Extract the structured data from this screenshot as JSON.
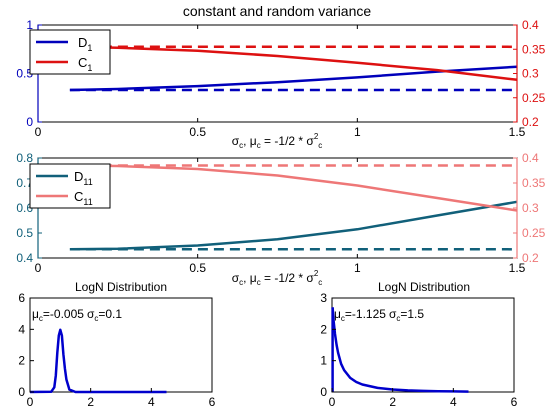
{
  "chart_data": [
    {
      "type": "line",
      "title": "constant and random variance",
      "xlabel": "σ_c, μ_c = -1/2 * σ_c^2",
      "xlim": [
        0,
        1.5
      ],
      "xticks": [
        "0",
        "0.5",
        "1",
        "1.5"
      ],
      "ylim_left": [
        0,
        1
      ],
      "yticks_left": [
        "0",
        "0.5",
        "1"
      ],
      "ylim_right": [
        0.2,
        0.4
      ],
      "yticks_right": [
        "0.2",
        "0.25",
        "0.3",
        "0.35",
        "0.4"
      ],
      "legend_position": "top-left",
      "series": [
        {
          "name": "D",
          "name_sub": "1",
          "axis": "left",
          "color": "#0000bb",
          "style": "solid",
          "x": [
            0.1,
            0.25,
            0.5,
            0.75,
            1.0,
            1.25,
            1.5
          ],
          "y": [
            0.33,
            0.34,
            0.37,
            0.41,
            0.46,
            0.52,
            0.57
          ]
        },
        {
          "name": "C",
          "name_sub": "1",
          "axis": "right",
          "color": "#dd1111",
          "style": "solid",
          "x": [
            0.1,
            0.25,
            0.5,
            0.75,
            1.0,
            1.25,
            1.5
          ],
          "y": [
            0.355,
            0.353,
            0.347,
            0.336,
            0.322,
            0.307,
            0.287
          ]
        },
        {
          "axis": "left",
          "color": "#0000bb",
          "style": "dashed",
          "x": [
            0.1,
            1.5
          ],
          "y": [
            0.33,
            0.33
          ]
        },
        {
          "axis": "right",
          "color": "#dd1111",
          "style": "dashed",
          "x": [
            0.1,
            1.5
          ],
          "y": [
            0.355,
            0.355
          ]
        }
      ]
    },
    {
      "type": "line",
      "xlabel": "σ_c, μ_c = -1/2 * σ_c^2",
      "xlim": [
        0,
        1.5
      ],
      "xticks": [
        "0",
        "0.5",
        "1",
        "1.5"
      ],
      "ylim_left": [
        0.4,
        0.8
      ],
      "yticks_left": [
        "0.4",
        "0.5",
        "0.6",
        "0.7",
        "0.8"
      ],
      "ylim_right": [
        0.2,
        0.4
      ],
      "yticks_right": [
        "0.2",
        "0.25",
        "0.3",
        "0.35",
        "0.4"
      ],
      "legend_position": "top-left",
      "series": [
        {
          "name": "D",
          "name_sub": "11",
          "axis": "left",
          "color": "#11607a",
          "style": "solid",
          "x": [
            0.1,
            0.25,
            0.5,
            0.75,
            1.0,
            1.25,
            1.5
          ],
          "y": [
            0.435,
            0.437,
            0.45,
            0.475,
            0.515,
            0.57,
            0.625
          ]
        },
        {
          "name": "C",
          "name_sub": "11",
          "axis": "right",
          "color": "#ee7777",
          "style": "solid",
          "x": [
            0.1,
            0.25,
            0.5,
            0.75,
            1.0,
            1.25,
            1.5
          ],
          "y": [
            0.385,
            0.384,
            0.378,
            0.365,
            0.345,
            0.32,
            0.295
          ]
        },
        {
          "axis": "left",
          "color": "#11607a",
          "style": "dashed",
          "x": [
            0.1,
            1.5
          ],
          "y": [
            0.435,
            0.435
          ]
        },
        {
          "axis": "right",
          "color": "#ee7777",
          "style": "dashed",
          "x": [
            0.1,
            1.5
          ],
          "y": [
            0.385,
            0.385
          ]
        }
      ]
    },
    {
      "type": "line",
      "title": "LogN Distribution",
      "annotation": {
        "mu_sym": "μ",
        "mu_sub": "c",
        "mu_val": "=-0.005",
        "sigma_sym": "σ",
        "sigma_sub": "c",
        "sigma_val": "=0.1"
      },
      "xlim": [
        0,
        6
      ],
      "xticks": [
        "0",
        "2",
        "4",
        "6"
      ],
      "ylim": [
        0,
        6
      ],
      "yticks": [
        "0",
        "2",
        "4",
        "6"
      ],
      "series": [
        {
          "color": "#0000cc",
          "style": "solid",
          "x": [
            0.0,
            0.7,
            0.8,
            0.85,
            0.9,
            0.95,
            1.0,
            1.05,
            1.1,
            1.15,
            1.2,
            1.3,
            1.5,
            4.5
          ],
          "y": [
            0.0,
            0.01,
            0.3,
            1.05,
            2.5,
            3.6,
            3.97,
            3.6,
            2.4,
            1.5,
            0.8,
            0.15,
            0.0,
            0.0
          ]
        }
      ]
    },
    {
      "type": "line",
      "title": "LogN Distribution",
      "annotation": {
        "mu_sym": "μ",
        "mu_sub": "c",
        "mu_val": "=-1.125",
        "sigma_sym": "σ",
        "sigma_sub": "c",
        "sigma_val": "=1.5"
      },
      "xlim": [
        0,
        6
      ],
      "xticks": [
        "0",
        "2",
        "4",
        "6"
      ],
      "ylim": [
        0,
        3
      ],
      "yticks": [
        "0",
        "1",
        "2",
        "3"
      ],
      "series": [
        {
          "color": "#0000cc",
          "style": "solid",
          "x": [
            0.02,
            0.05,
            0.1,
            0.15,
            0.2,
            0.3,
            0.4,
            0.6,
            0.8,
            1.0,
            1.5,
            2.0,
            2.5,
            3.0,
            3.5,
            4.0,
            4.5
          ],
          "y": [
            2.7,
            2.3,
            1.85,
            1.5,
            1.25,
            0.9,
            0.7,
            0.45,
            0.32,
            0.24,
            0.13,
            0.08,
            0.05,
            0.035,
            0.025,
            0.018,
            0.013
          ]
        },
        {
          "color": "#0000cc",
          "style": "solid",
          "x": [
            0.02,
            0.02
          ],
          "y": [
            0.0,
            2.7
          ]
        }
      ]
    }
  ]
}
